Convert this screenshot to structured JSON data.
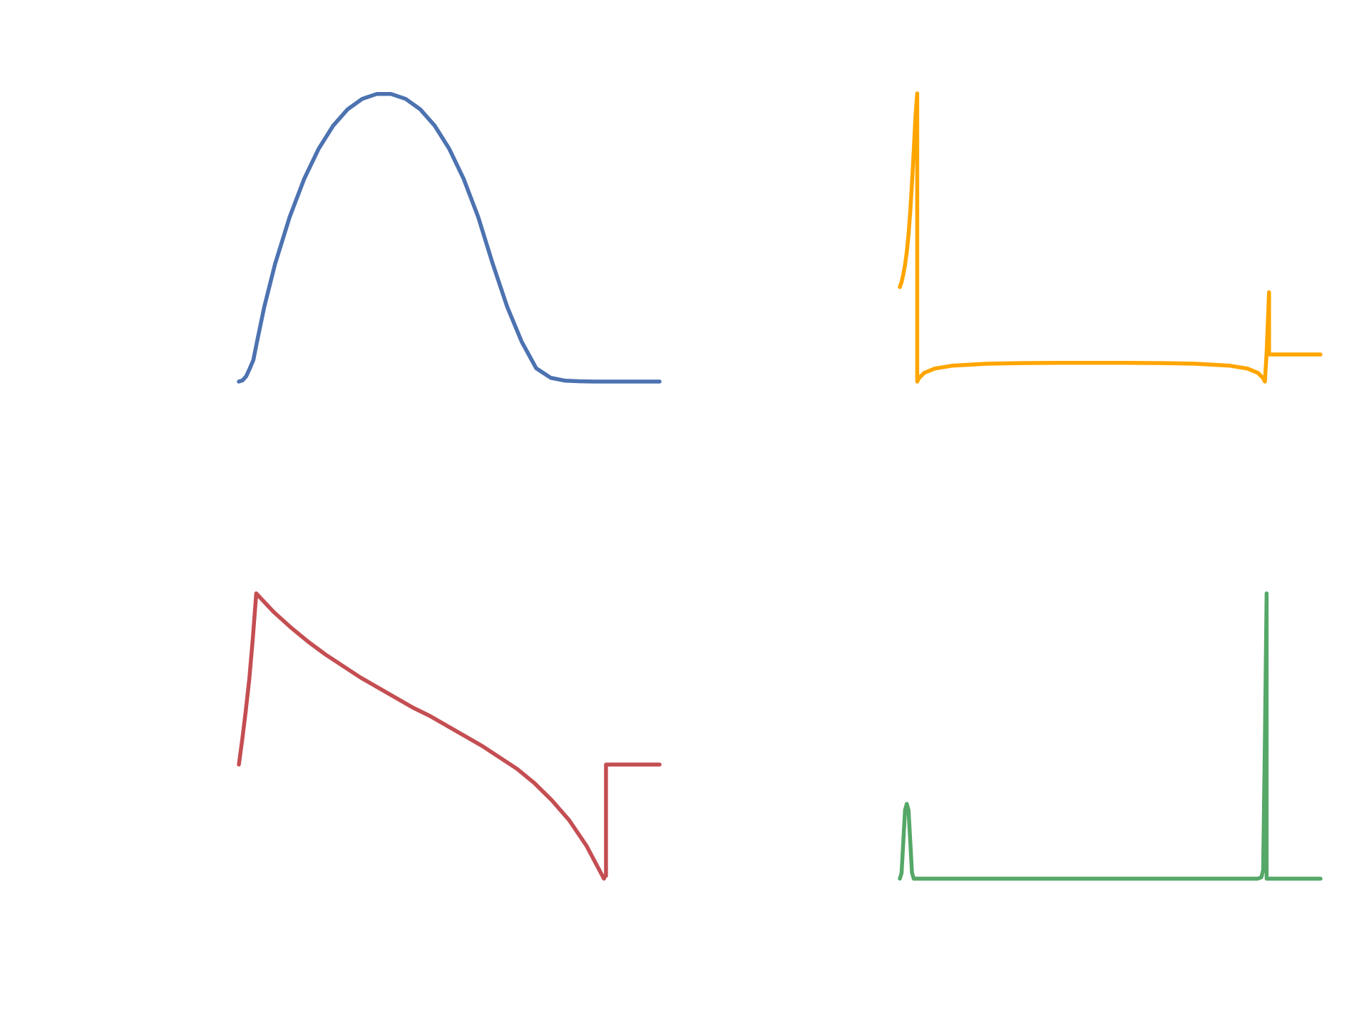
{
  "chart_data": [
    {
      "type": "line",
      "panel": "top-left",
      "title": "",
      "xlabel": "",
      "ylabel": "",
      "grid": false,
      "axes_visible": false,
      "color": "#4C72B0",
      "xlim": [
        0,
        1.16
      ],
      "ylim": [
        0,
        1
      ],
      "x": [
        0,
        0.01,
        0.02,
        0.03,
        0.04,
        0.05,
        0.07,
        0.1,
        0.14,
        0.18,
        0.22,
        0.26,
        0.3,
        0.34,
        0.38,
        0.42,
        0.46,
        0.5,
        0.54,
        0.58,
        0.62,
        0.66,
        0.7,
        0.74,
        0.78,
        0.82,
        0.86,
        0.9,
        0.94,
        0.98,
        1.0,
        1.0,
        1.16
      ],
      "y": [
        0,
        0.004,
        0.018,
        0.045,
        0.075,
        0.138,
        0.259,
        0.409,
        0.571,
        0.703,
        0.808,
        0.888,
        0.945,
        0.981,
        0.998,
        0.998,
        0.981,
        0.945,
        0.888,
        0.808,
        0.703,
        0.571,
        0.409,
        0.259,
        0.138,
        0.046,
        0.013,
        0.003,
        0.001,
        0.0,
        0.0,
        0.0,
        0.0
      ]
    },
    {
      "type": "line",
      "panel": "top-right",
      "title": "",
      "xlabel": "",
      "ylabel": "",
      "grid": false,
      "axes_visible": false,
      "color": "#FFA500",
      "xlim": [
        -0.05,
        1.16
      ],
      "ylim": [
        0,
        1
      ],
      "x": [
        -0.05,
        -0.045,
        -0.04,
        -0.035,
        -0.03,
        -0.025,
        -0.02,
        -0.015,
        -0.01,
        -0.005,
        0.0,
        0.0,
        0.0,
        0.005,
        0.02,
        0.05,
        0.1,
        0.2,
        0.3,
        0.4,
        0.5,
        0.6,
        0.7,
        0.8,
        0.9,
        0.95,
        0.98,
        0.995,
        1.0,
        1.0,
        1.005,
        1.01,
        1.012,
        1.012,
        1.16
      ],
      "y": [
        0.328,
        0.345,
        0.372,
        0.405,
        0.45,
        0.51,
        0.59,
        0.69,
        0.8,
        0.92,
        1.0,
        0.5,
        0.0,
        0.012,
        0.03,
        0.045,
        0.055,
        0.062,
        0.064,
        0.065,
        0.065,
        0.065,
        0.064,
        0.062,
        0.055,
        0.045,
        0.03,
        0.012,
        0.0,
        0.0,
        0.1,
        0.25,
        0.31,
        0.094,
        0.094
      ]
    },
    {
      "type": "line",
      "panel": "bottom-left",
      "title": "",
      "xlabel": "",
      "ylabel": "",
      "grid": false,
      "axes_visible": false,
      "color": "#C44E52",
      "xlim": [
        -0.05,
        1.16
      ],
      "ylim": [
        -1,
        1
      ],
      "x": [
        -0.05,
        -0.04,
        -0.03,
        -0.02,
        -0.01,
        0.0,
        0.05,
        0.1,
        0.15,
        0.2,
        0.25,
        0.3,
        0.35,
        0.4,
        0.45,
        0.5,
        0.55,
        0.6,
        0.65,
        0.7,
        0.75,
        0.8,
        0.85,
        0.9,
        0.95,
        1.0,
        1.003,
        1.006,
        1.006,
        1.16
      ],
      "y": [
        -0.2,
        -0.02,
        0.18,
        0.4,
        0.68,
        1.0,
        0.87,
        0.76,
        0.66,
        0.57,
        0.49,
        0.41,
        0.34,
        0.27,
        0.2,
        0.14,
        0.07,
        0.0,
        -0.07,
        -0.15,
        -0.23,
        -0.33,
        -0.45,
        -0.59,
        -0.77,
        -1.0,
        -0.98,
        -0.98,
        -0.2,
        -0.2
      ]
    },
    {
      "type": "line",
      "panel": "bottom-right",
      "title": "",
      "xlabel": "",
      "ylabel": "",
      "grid": false,
      "axes_visible": false,
      "color": "#55A868",
      "xlim": [
        -0.05,
        1.16
      ],
      "ylim": [
        0,
        1
      ],
      "x": [
        -0.05,
        -0.045,
        -0.04,
        -0.035,
        -0.03,
        -0.025,
        -0.02,
        -0.015,
        -0.01,
        -0.005,
        0.0,
        0.1,
        0.3,
        0.5,
        0.7,
        0.9,
        0.98,
        0.99,
        0.995,
        1.0,
        1.005,
        1.005,
        1.16
      ],
      "y": [
        0.0,
        0.02,
        0.13,
        0.24,
        0.262,
        0.24,
        0.13,
        0.02,
        0.0,
        0.0,
        0.0,
        0.0,
        0.0,
        0.0,
        0.0,
        0.0,
        0.0,
        0.005,
        0.03,
        0.48,
        1.0,
        0.0,
        0.0
      ]
    }
  ]
}
